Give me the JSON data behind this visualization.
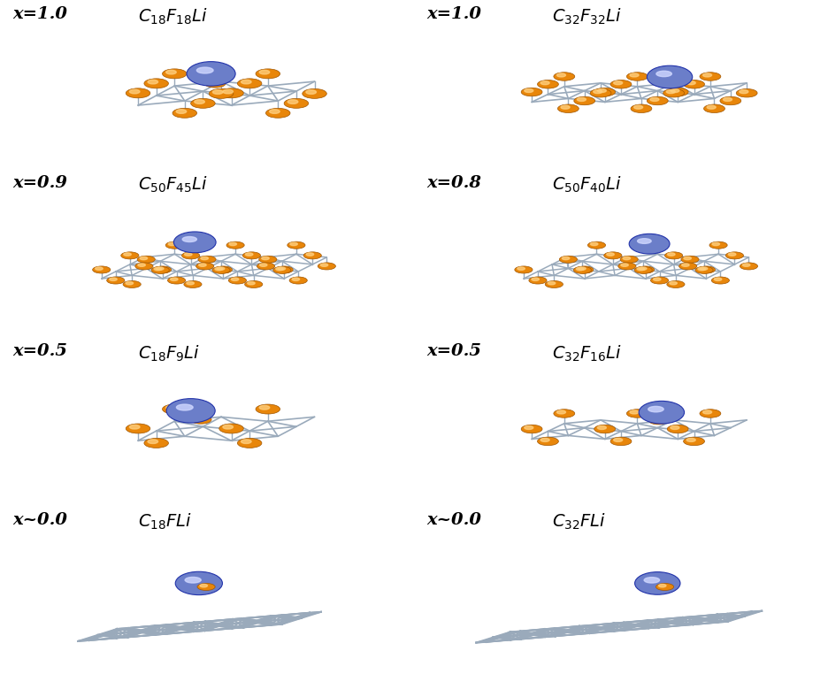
{
  "panels": [
    {
      "row": 0,
      "col": 0,
      "scene": 0,
      "label": "x=1.0 $\\mathit{C}_{18}\\mathit{F}_{18}\\mathit{Li}$"
    },
    {
      "row": 0,
      "col": 1,
      "scene": 1,
      "label": "x=1.0 $\\mathit{C}_{32}\\mathit{F}_{32}\\mathit{Li}$"
    },
    {
      "row": 1,
      "col": 0,
      "scene": 2,
      "label": "x=0.9 $\\mathit{C}_{50}\\mathit{F}_{45}\\mathit{Li}$"
    },
    {
      "row": 1,
      "col": 1,
      "scene": 3,
      "label": "x=0.8 $\\mathit{C}_{50}\\mathit{F}_{40}\\mathit{Li}$"
    },
    {
      "row": 2,
      "col": 0,
      "scene": 4,
      "label": "x=0.5 $\\mathit{C}_{18}\\mathit{F}_{9}\\mathit{Li}$"
    },
    {
      "row": 2,
      "col": 1,
      "scene": 5,
      "label": "x=0.5 $\\mathit{C}_{32}\\mathit{F}_{16}\\mathit{Li}$"
    },
    {
      "row": 3,
      "col": 0,
      "scene": 6,
      "label": "x~0.0 $\\mathit{C}_{18}\\mathit{F}\\mathit{Li}$"
    },
    {
      "row": 3,
      "col": 1,
      "scene": 7,
      "label": "x~0.0 $\\mathit{C}_{32}\\mathit{F}\\mathit{Li}$"
    }
  ],
  "background_color": "#ffffff",
  "orange_color": "#E8860A",
  "li_color": "#6B7EC9",
  "bond_color": "#9AAABB",
  "label_fontsize": 14,
  "fig_width": 9.36,
  "fig_height": 7.62
}
